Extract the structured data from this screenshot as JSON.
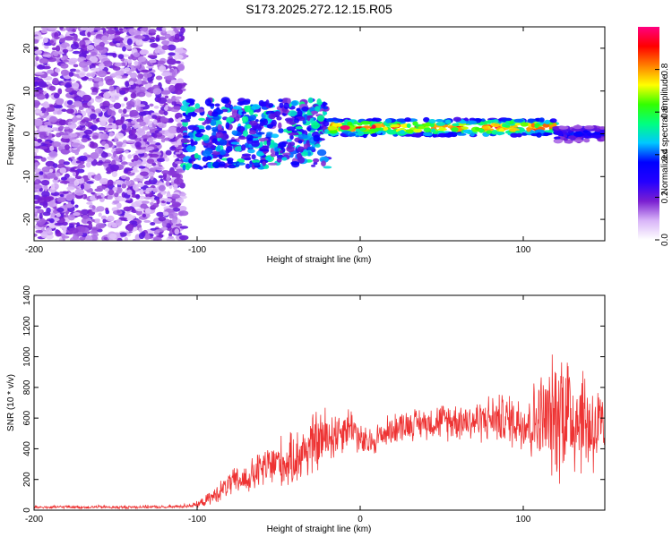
{
  "figure_title": "S173.2025.272.12.15.R05",
  "chart_data": [
    {
      "type": "heatmap",
      "title": "",
      "xlabel": "Height of straight line (km)",
      "ylabel": "Frequency (Hz)",
      "xlim": [
        -200,
        150
      ],
      "ylim": [
        -25,
        25
      ],
      "x_ticks": [
        -200,
        -100,
        0,
        100
      ],
      "y_ticks": [
        -20,
        -10,
        0,
        10,
        20
      ],
      "colorbar": {
        "label": "Normalized spectral amplitude",
        "range": [
          0,
          1
        ],
        "ticks": [
          0.0,
          0.2,
          0.4,
          0.6,
          0.8
        ],
        "tick_labels": [
          "0.0",
          "0.2",
          "0.4",
          "0.6",
          "0.8"
        ],
        "colormap": [
          "#ffffff",
          "#d8b4f8",
          "#7a1fd1",
          "#2400ff",
          "#0000ff",
          "#00c8ff",
          "#00ff80",
          "#33ff00",
          "#ffff00",
          "#ff8000",
          "#ff0000",
          "#ff0080"
        ]
      },
      "regions": [
        {
          "x_range": [
            -200,
            -108
          ],
          "description": "broadband noise",
          "amplitude": 0.1,
          "freq_band": [
            -25,
            25
          ]
        },
        {
          "x_range": [
            -108,
            -20
          ],
          "description": "scattered signal",
          "amplitude": 0.25,
          "freq_band": [
            -8,
            8
          ]
        },
        {
          "x_range": [
            -20,
            120
          ],
          "description": "strong narrow line",
          "amplitude": 0.85,
          "center_freq_hz": 1.5
        },
        {
          "x_range": [
            120,
            150
          ],
          "description": "weakening line",
          "amplitude": 0.35,
          "center_freq_hz": 0
        }
      ]
    },
    {
      "type": "line",
      "title": "",
      "xlabel": "Height of straight line (km)",
      "ylabel": "SNR (10 * v/v)",
      "xlim": [
        -200,
        150
      ],
      "ylim": [
        0,
        1400
      ],
      "x_ticks": [
        -200,
        -100,
        0,
        100
      ],
      "y_ticks": [
        0,
        200,
        400,
        600,
        800,
        1000,
        1200,
        1400
      ],
      "series": [
        {
          "name": "SNR",
          "color": "#ee3333",
          "x": [
            -200,
            -190,
            -180,
            -170,
            -160,
            -150,
            -140,
            -130,
            -120,
            -110,
            -100,
            -95,
            -90,
            -85,
            -80,
            -75,
            -70,
            -65,
            -60,
            -55,
            -50,
            -45,
            -40,
            -35,
            -30,
            -25,
            -20,
            -15,
            -10,
            -5,
            0,
            5,
            10,
            15,
            20,
            25,
            30,
            35,
            40,
            45,
            50,
            55,
            60,
            65,
            70,
            75,
            80,
            85,
            90,
            95,
            100,
            105,
            110,
            115,
            120,
            125,
            130,
            135,
            140,
            145,
            150
          ],
          "values": [
            20,
            18,
            22,
            19,
            21,
            18,
            20,
            22,
            19,
            25,
            35,
            60,
            90,
            130,
            170,
            190,
            200,
            230,
            270,
            290,
            320,
            300,
            340,
            380,
            420,
            450,
            480,
            500,
            530,
            560,
            450,
            430,
            470,
            500,
            530,
            550,
            560,
            565,
            570,
            575,
            580,
            585,
            590,
            585,
            580,
            590,
            600,
            595,
            590,
            585,
            580,
            560,
            600,
            590,
            620,
            700,
            600,
            620,
            560,
            520,
            450
          ],
          "noise_amp": [
            12,
            12,
            12,
            12,
            12,
            12,
            12,
            12,
            12,
            14,
            25,
            40,
            60,
            80,
            100,
            110,
            120,
            140,
            160,
            180,
            200,
            190,
            210,
            230,
            250,
            250,
            240,
            200,
            170,
            150,
            130,
            120,
            120,
            120,
            120,
            120,
            120,
            120,
            120,
            130,
            140,
            150,
            150,
            160,
            160,
            170,
            180,
            190,
            200,
            220,
            250,
            300,
            350,
            400,
            500,
            600,
            500,
            450,
            420,
            400,
            380
          ]
        }
      ]
    }
  ]
}
